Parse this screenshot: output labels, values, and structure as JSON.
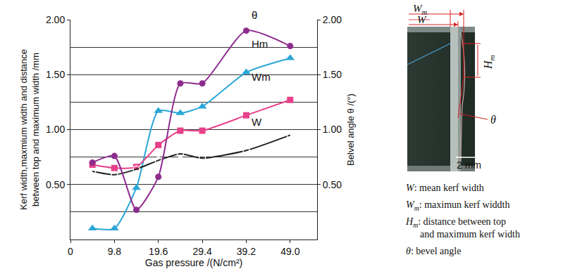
{
  "chart_data": {
    "type": "line",
    "x_label": "Gas pressure /(N/cm²)",
    "y_label": "Kerf width,maxmium width and distance\nbetween top and maximum width /mm",
    "y2_label": "Belvel angle θ /(°)",
    "x": [
      4.9,
      9.8,
      14.7,
      19.6,
      24.5,
      29.4,
      39.2,
      49.0
    ],
    "xlim": [
      0,
      55
    ],
    "xticks": [
      0,
      9.8,
      19.6,
      29.4,
      39.2,
      {
        "value": 49.0,
        "label": "49.0"
      }
    ],
    "ylim": [
      0,
      2
    ],
    "yticks": [
      {
        "value": 0.5,
        "label": "0.50"
      },
      {
        "value": 1.0,
        "label": "1.00"
      },
      {
        "value": 1.5,
        "label": "1.50"
      },
      {
        "value": 2.0,
        "label": "2.00"
      }
    ],
    "y2lim": [
      0,
      2
    ],
    "y2ticks": [
      {
        "value": 0.5,
        "label": "0.50"
      },
      {
        "value": 1.0,
        "label": "1.00"
      },
      {
        "value": 1.5,
        "label": "1.50"
      },
      {
        "value": 2.0,
        "label": "2.00"
      }
    ],
    "grid": true,
    "series": [
      {
        "name": "θ",
        "color": "#8e2c8e",
        "marker": "circle",
        "line_style": "smooth",
        "axis": "y2",
        "values": [
          0.7,
          0.76,
          0.27,
          0.57,
          1.42,
          1.42,
          1.9,
          1.76
        ]
      },
      {
        "name": "Hm",
        "color": "#2aa6d6",
        "marker": "triangle-up",
        "line_style": "smooth",
        "values": [
          0.1,
          0.1,
          0.47,
          1.17,
          1.15,
          1.21,
          1.52,
          1.65
        ]
      },
      {
        "name": "Wm",
        "color": "#e8408a",
        "marker": "square",
        "line_style": "smooth",
        "values": [
          0.68,
          0.65,
          0.66,
          0.86,
          0.99,
          0.99,
          1.13,
          1.27
        ]
      },
      {
        "name": "W",
        "color": "#222222",
        "marker": "circle-open",
        "line_style": "smooth",
        "values": [
          0.62,
          0.59,
          0.64,
          0.72,
          0.78,
          0.74,
          0.81,
          0.95
        ]
      }
    ]
  },
  "inset": {
    "labels": {
      "max_width": {
        "symbol": "W",
        "sub": "m"
      },
      "mean_width": {
        "symbol": "W"
      },
      "height": {
        "symbol": "H",
        "sub": "m"
      },
      "angle": {
        "symbol": "θ"
      },
      "scale": "2 mm"
    },
    "legend": [
      {
        "symbol": "W",
        "lines": [
          ": mean kerf width"
        ]
      },
      {
        "symbol": "W",
        "sub": "m",
        "lines": [
          ": maximun kerf widdth"
        ]
      },
      {
        "symbol": "H",
        "sub": "m",
        "lines": [
          ": distance between top",
          "and maximum kerf width"
        ]
      },
      {
        "symbol": "θ",
        "lines": [
          ": bevel angle"
        ]
      }
    ]
  }
}
